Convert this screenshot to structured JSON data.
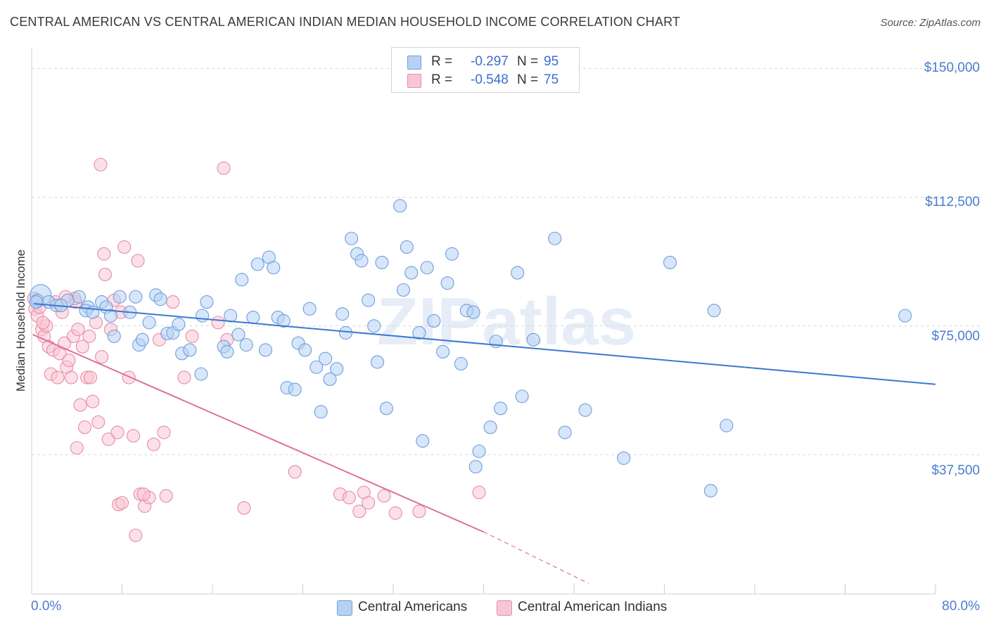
{
  "title": "CENTRAL AMERICAN VS CENTRAL AMERICAN INDIAN MEDIAN HOUSEHOLD INCOME CORRELATION CHART",
  "source": "Source: ZipAtlas.com",
  "watermark": "ZIPatlas",
  "colors": {
    "blue_fill": "#b7d1f3",
    "blue_stroke": "#6e9ee0",
    "blue_line": "#3b78d0",
    "pink_fill": "#f7c6d4",
    "pink_stroke": "#e88aa7",
    "pink_line": "#e0709a",
    "tick_text": "#4a7ccf",
    "grid": "#d9d9d9"
  },
  "stats": [
    {
      "r_label": "R =",
      "r_value": "-0.297",
      "n_label": "N =",
      "n_value": "95"
    },
    {
      "r_label": "R =",
      "r_value": "-0.548",
      "n_label": "N =",
      "n_value": "75"
    }
  ],
  "legend": [
    "Central Americans",
    "Central American Indians"
  ],
  "chart_data": {
    "type": "scatter",
    "title": "CENTRAL AMERICAN VS CENTRAL AMERICAN INDIAN MEDIAN HOUSEHOLD INCOME CORRELATION CHART",
    "xlabel": "",
    "ylabel": "Median Household Income",
    "x_tick_labels": [
      "0.0%",
      "80.0%"
    ],
    "y_tick_labels": [
      "$37,500",
      "$75,000",
      "$112,500",
      "$150,000"
    ],
    "y_ticks": [
      37500,
      75000,
      112500,
      150000
    ],
    "xlim": [
      0,
      80
    ],
    "ylim": [
      0,
      154000
    ],
    "grid": true,
    "legend_position": "bottom",
    "series": [
      {
        "name": "Central Americans",
        "color": "#6e9ee0",
        "points": [
          [
            0.8,
            84000,
            2
          ],
          [
            0.5,
            82500,
            1
          ],
          [
            1.5,
            82000,
            1
          ],
          [
            2.2,
            81000,
            1
          ],
          [
            3.2,
            82500,
            1
          ],
          [
            4.2,
            83500,
            1
          ],
          [
            5.0,
            80500,
            1
          ],
          [
            6.2,
            82000,
            1
          ],
          [
            7.8,
            83500,
            1
          ],
          [
            9.2,
            83500,
            1
          ],
          [
            2.6,
            81000,
            1
          ],
          [
            4.8,
            79500,
            1
          ],
          [
            5.4,
            79000,
            1
          ],
          [
            6.6,
            80500,
            1
          ],
          [
            7.0,
            78000,
            1
          ],
          [
            8.7,
            79000,
            1
          ],
          [
            10.4,
            76000,
            1
          ],
          [
            11.0,
            84000,
            1
          ],
          [
            11.4,
            82800,
            1
          ],
          [
            12.0,
            72800,
            1
          ],
          [
            7.3,
            72000,
            1
          ],
          [
            9.5,
            69500,
            1
          ],
          [
            9.8,
            71000,
            1
          ],
          [
            12.5,
            73000,
            1
          ],
          [
            13.0,
            75500,
            1
          ],
          [
            13.3,
            67000,
            1
          ],
          [
            14.0,
            68000,
            1
          ],
          [
            15.1,
            78000,
            1
          ],
          [
            15.5,
            82000,
            1
          ],
          [
            15.0,
            61000,
            1
          ],
          [
            17.0,
            69000,
            1
          ],
          [
            17.3,
            67500,
            1
          ],
          [
            17.6,
            78000,
            1
          ],
          [
            18.3,
            72500,
            1
          ],
          [
            18.6,
            88500,
            1
          ],
          [
            19.0,
            69500,
            1
          ],
          [
            19.6,
            77500,
            1
          ],
          [
            20.0,
            93000,
            1
          ],
          [
            20.7,
            68000,
            1
          ],
          [
            21.0,
            95000,
            1
          ],
          [
            21.4,
            92000,
            1
          ],
          [
            21.8,
            77500,
            1
          ],
          [
            22.3,
            76500,
            1
          ],
          [
            22.6,
            57000,
            1
          ],
          [
            23.3,
            56500,
            1
          ],
          [
            23.6,
            70000,
            1
          ],
          [
            24.2,
            68000,
            1
          ],
          [
            24.6,
            80000,
            1
          ],
          [
            25.2,
            63000,
            1
          ],
          [
            25.6,
            50000,
            1
          ],
          [
            26.0,
            65500,
            1
          ],
          [
            26.4,
            59500,
            1
          ],
          [
            27.0,
            62500,
            1
          ],
          [
            27.5,
            78500,
            1
          ],
          [
            27.8,
            73000,
            1
          ],
          [
            28.3,
            100500,
            1
          ],
          [
            28.8,
            96000,
            1
          ],
          [
            29.2,
            94000,
            1
          ],
          [
            29.8,
            82500,
            1
          ],
          [
            30.3,
            75000,
            1
          ],
          [
            30.6,
            64500,
            1
          ],
          [
            31.0,
            93500,
            1
          ],
          [
            31.4,
            51000,
            1
          ],
          [
            32.6,
            110000,
            1
          ],
          [
            32.9,
            85500,
            1
          ],
          [
            33.2,
            98000,
            1
          ],
          [
            33.6,
            90500,
            1
          ],
          [
            34.3,
            73000,
            1
          ],
          [
            34.6,
            41500,
            1
          ],
          [
            35.0,
            92000,
            1
          ],
          [
            35.6,
            76500,
            1
          ],
          [
            36.4,
            67500,
            1
          ],
          [
            36.8,
            87500,
            1
          ],
          [
            37.2,
            96000,
            1
          ],
          [
            38.0,
            64000,
            1
          ],
          [
            38.5,
            79500,
            1
          ],
          [
            39.1,
            79000,
            1
          ],
          [
            39.3,
            34000,
            1
          ],
          [
            39.6,
            38500,
            1
          ],
          [
            40.6,
            45500,
            1
          ],
          [
            41.1,
            70500,
            1
          ],
          [
            41.5,
            51000,
            1
          ],
          [
            43.0,
            90500,
            1
          ],
          [
            43.4,
            54500,
            1
          ],
          [
            44.4,
            71000,
            1
          ],
          [
            46.3,
            100500,
            1
          ],
          [
            47.2,
            44000,
            1
          ],
          [
            49.0,
            50500,
            1
          ],
          [
            52.4,
            36500,
            1
          ],
          [
            56.5,
            93500,
            1
          ],
          [
            60.1,
            27000,
            1
          ],
          [
            60.4,
            79500,
            1
          ],
          [
            61.5,
            46000,
            1
          ],
          [
            77.3,
            78000,
            1
          ],
          [
            0.4,
            82000,
            1
          ]
        ],
        "trend": [
          [
            0.2,
            81500
          ],
          [
            80.0,
            58000
          ]
        ]
      },
      {
        "name": "Central American Indians",
        "color": "#e88aa7",
        "points": [
          [
            0.2,
            83000,
            1
          ],
          [
            0.3,
            80000,
            1
          ],
          [
            0.5,
            78000,
            1
          ],
          [
            0.9,
            74000,
            1
          ],
          [
            1.1,
            72000,
            1
          ],
          [
            1.3,
            75000,
            1
          ],
          [
            1.5,
            69000,
            1
          ],
          [
            1.7,
            61000,
            1
          ],
          [
            1.9,
            68000,
            1
          ],
          [
            2.1,
            82000,
            1
          ],
          [
            2.3,
            60000,
            1
          ],
          [
            2.5,
            67000,
            1
          ],
          [
            2.7,
            79000,
            1
          ],
          [
            2.9,
            70000,
            1
          ],
          [
            3.1,
            63000,
            1
          ],
          [
            3.3,
            65000,
            1
          ],
          [
            3.5,
            60000,
            1
          ],
          [
            3.7,
            72000,
            1
          ],
          [
            3.9,
            82000,
            1
          ],
          [
            4.1,
            74000,
            1
          ],
          [
            4.3,
            52000,
            1
          ],
          [
            4.5,
            69000,
            1
          ],
          [
            4.7,
            45500,
            1
          ],
          [
            4.9,
            60000,
            1
          ],
          [
            5.1,
            72000,
            1
          ],
          [
            5.4,
            53000,
            1
          ],
          [
            5.7,
            76000,
            1
          ],
          [
            5.9,
            47000,
            1
          ],
          [
            6.2,
            66000,
            1
          ],
          [
            6.5,
            90000,
            1
          ],
          [
            6.8,
            42000,
            1
          ],
          [
            7.0,
            74000,
            1
          ],
          [
            7.3,
            82500,
            1
          ],
          [
            7.6,
            44000,
            1
          ],
          [
            7.9,
            79000,
            1
          ],
          [
            8.2,
            98000,
            1
          ],
          [
            8.6,
            60000,
            1
          ],
          [
            9.0,
            43000,
            1
          ],
          [
            9.4,
            94000,
            1
          ],
          [
            9.6,
            26000,
            1
          ],
          [
            10.0,
            22500,
            1
          ],
          [
            10.4,
            25000,
            1
          ],
          [
            10.8,
            40500,
            1
          ],
          [
            11.3,
            71000,
            1
          ],
          [
            11.9,
            25500,
            1
          ],
          [
            12.5,
            82000,
            1
          ],
          [
            13.5,
            60000,
            1
          ],
          [
            14.2,
            72000,
            1
          ],
          [
            16.5,
            76000,
            1
          ],
          [
            17.3,
            71000,
            1
          ],
          [
            18.8,
            22000,
            1
          ],
          [
            6.1,
            122000,
            1
          ],
          [
            17.0,
            121000,
            1
          ],
          [
            6.4,
            96000,
            1
          ],
          [
            3.8,
            83000,
            1
          ],
          [
            1.0,
            76000,
            1
          ],
          [
            0.7,
            80500,
            1
          ],
          [
            3.0,
            83500,
            1
          ],
          [
            4.0,
            39500,
            1
          ],
          [
            5.2,
            60000,
            1
          ],
          [
            7.7,
            23000,
            1
          ],
          [
            8.0,
            23500,
            1
          ],
          [
            9.9,
            26000,
            1
          ],
          [
            11.7,
            44000,
            1
          ],
          [
            23.3,
            32500,
            1
          ],
          [
            27.3,
            26000,
            1
          ],
          [
            28.1,
            25000,
            1
          ],
          [
            29.0,
            21000,
            1
          ],
          [
            29.4,
            26500,
            1
          ],
          [
            29.8,
            23500,
            1
          ],
          [
            31.2,
            25500,
            1
          ],
          [
            32.2,
            20500,
            1
          ],
          [
            34.3,
            21000,
            1
          ],
          [
            39.6,
            26500,
            1
          ],
          [
            9.2,
            14000,
            1
          ]
        ],
        "trend": [
          [
            0.1,
            72500
          ],
          [
            40.0,
            15000
          ]
        ],
        "trend_extension": [
          [
            40.0,
            15000
          ],
          [
            49.3,
            0
          ]
        ]
      }
    ]
  }
}
